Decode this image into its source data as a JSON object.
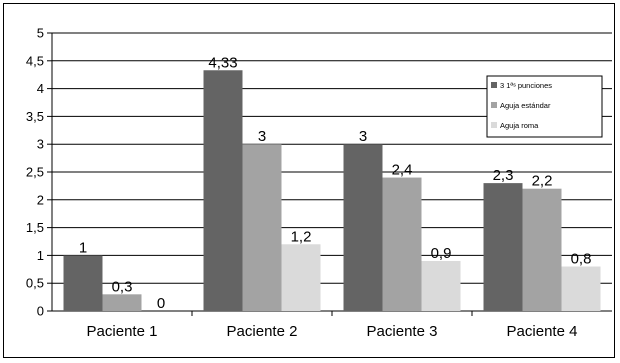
{
  "chart_data": {
    "type": "bar",
    "categories": [
      "Paciente 1",
      "Paciente 2",
      "Paciente 3",
      "Paciente 4"
    ],
    "series": [
      {
        "name": "3 1ªˢ punciones",
        "values": [
          1,
          4.33,
          3,
          2.3
        ],
        "color": "#646464"
      },
      {
        "name": "Aguja estándar",
        "values": [
          0.3,
          3,
          2.4,
          2.2
        ],
        "color": "#a3a3a3"
      },
      {
        "name": "Aguja roma",
        "values": [
          0,
          1.2,
          0.9,
          0.8
        ],
        "color": "#dadada"
      }
    ],
    "data_labels": [
      [
        "1",
        "0,3",
        "0"
      ],
      [
        "4,33",
        "3",
        "1,2"
      ],
      [
        "3",
        "2,4",
        "0,9"
      ],
      [
        "2,3",
        "2,2",
        "0,8"
      ]
    ],
    "y_ticks": [
      "0",
      "0,5",
      "1",
      "1,5",
      "2",
      "2,5",
      "3",
      "3,5",
      "4",
      "4,5",
      "5"
    ],
    "ylim": [
      0,
      5
    ],
    "grid": true,
    "legend_position": "top-right",
    "title": "",
    "xlabel": "",
    "ylabel": ""
  }
}
